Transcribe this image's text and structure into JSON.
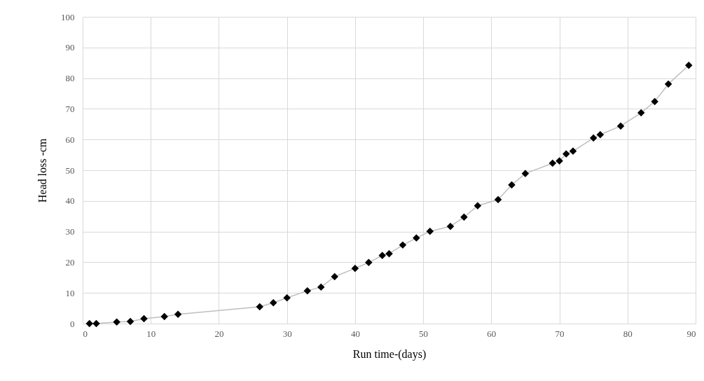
{
  "chart_data": {
    "type": "line",
    "xlabel": "Run time-(days)",
    "ylabel": "Head loss -cm",
    "x": [
      1,
      2,
      5,
      7,
      9,
      12,
      14,
      26,
      28,
      30,
      33,
      35,
      37,
      40,
      42,
      44,
      45,
      47,
      49,
      51,
      54,
      56,
      58,
      61,
      63,
      65,
      69,
      70,
      71,
      72,
      75,
      76,
      79,
      82,
      84,
      86,
      89
    ],
    "series": [
      {
        "color": "#000000",
        "values": [
          0,
          0,
          0.5,
          0.7,
          1.6,
          2.3,
          3,
          5.5,
          6.8,
          8.4,
          10.7,
          11.9,
          15.3,
          18,
          19.9,
          22.2,
          22.8,
          25.6,
          27.9,
          30.1,
          31.7,
          34.7,
          38.4,
          40.4,
          45.2,
          48.9,
          52.3,
          53,
          55.3,
          56.2,
          60.5,
          61.6,
          64.4,
          68.7,
          72.4,
          78.1,
          84.2
        ]
      }
    ],
    "xlim": [
      0,
      90
    ],
    "xticks": [
      0,
      10,
      20,
      30,
      40,
      50,
      60,
      70,
      80,
      90
    ],
    "ylim": [
      0,
      100
    ],
    "yticks": [
      0,
      10,
      20,
      30,
      40,
      50,
      60,
      70,
      80,
      90,
      100
    ],
    "grid": true,
    "marker": "diamond",
    "line_style": "solid"
  }
}
